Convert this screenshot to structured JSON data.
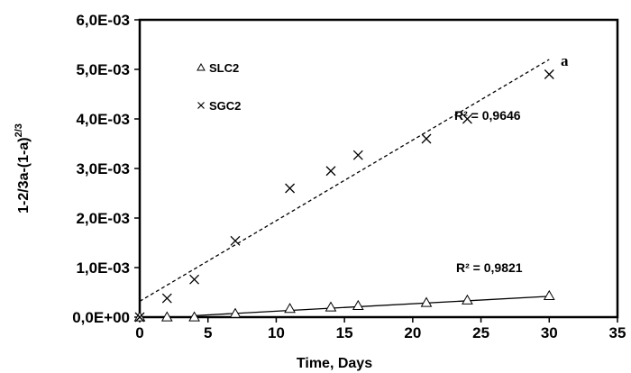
{
  "chart_data": {
    "type": "scatter",
    "xlabel": "Time, Days",
    "ylabel_main": "1-2/3a-(1-a)",
    "ylabel_sup": "2/3",
    "xlim": [
      0,
      35
    ],
    "ylim": [
      0,
      0.006
    ],
    "x_ticks": [
      0,
      5,
      10,
      15,
      20,
      25,
      30,
      35
    ],
    "y_ticks": [
      0,
      0.001,
      0.002,
      0.003,
      0.004,
      0.005,
      0.006
    ],
    "y_tick_labels": [
      "0,0E+00",
      "1,0E-03",
      "2,0E-03",
      "3,0E-03",
      "4,0E-03",
      "5,0E-03",
      "6,0E-03"
    ],
    "grid": false,
    "legend_position": "top-left",
    "panel_label": "a",
    "series": [
      {
        "name": "SLC2",
        "marker": "triangle",
        "x": [
          0,
          2,
          4,
          7,
          11,
          14,
          16,
          21,
          24,
          30
        ],
        "y": [
          0.0,
          0.0,
          0.0,
          7e-05,
          0.00017,
          0.0002,
          0.00023,
          0.00029,
          0.00034,
          0.00043
        ],
        "trendline": {
          "style": "solid",
          "x": [
            4,
            30
          ],
          "y": [
            3e-05,
            0.00042
          ]
        },
        "r2_label": "R² = 0,9821"
      },
      {
        "name": "SGC2",
        "marker": "x",
        "x": [
          0,
          2,
          4,
          7,
          11,
          14,
          16,
          21,
          24,
          30
        ],
        "y": [
          0.0,
          0.00038,
          0.00076,
          0.00154,
          0.0026,
          0.00295,
          0.00327,
          0.0036,
          0.004,
          0.0049
        ],
        "trendline": {
          "style": "dashed",
          "x": [
            0,
            30
          ],
          "y": [
            0.00032,
            0.0052
          ]
        },
        "r2_label": "R² = 0,9646"
      }
    ]
  }
}
